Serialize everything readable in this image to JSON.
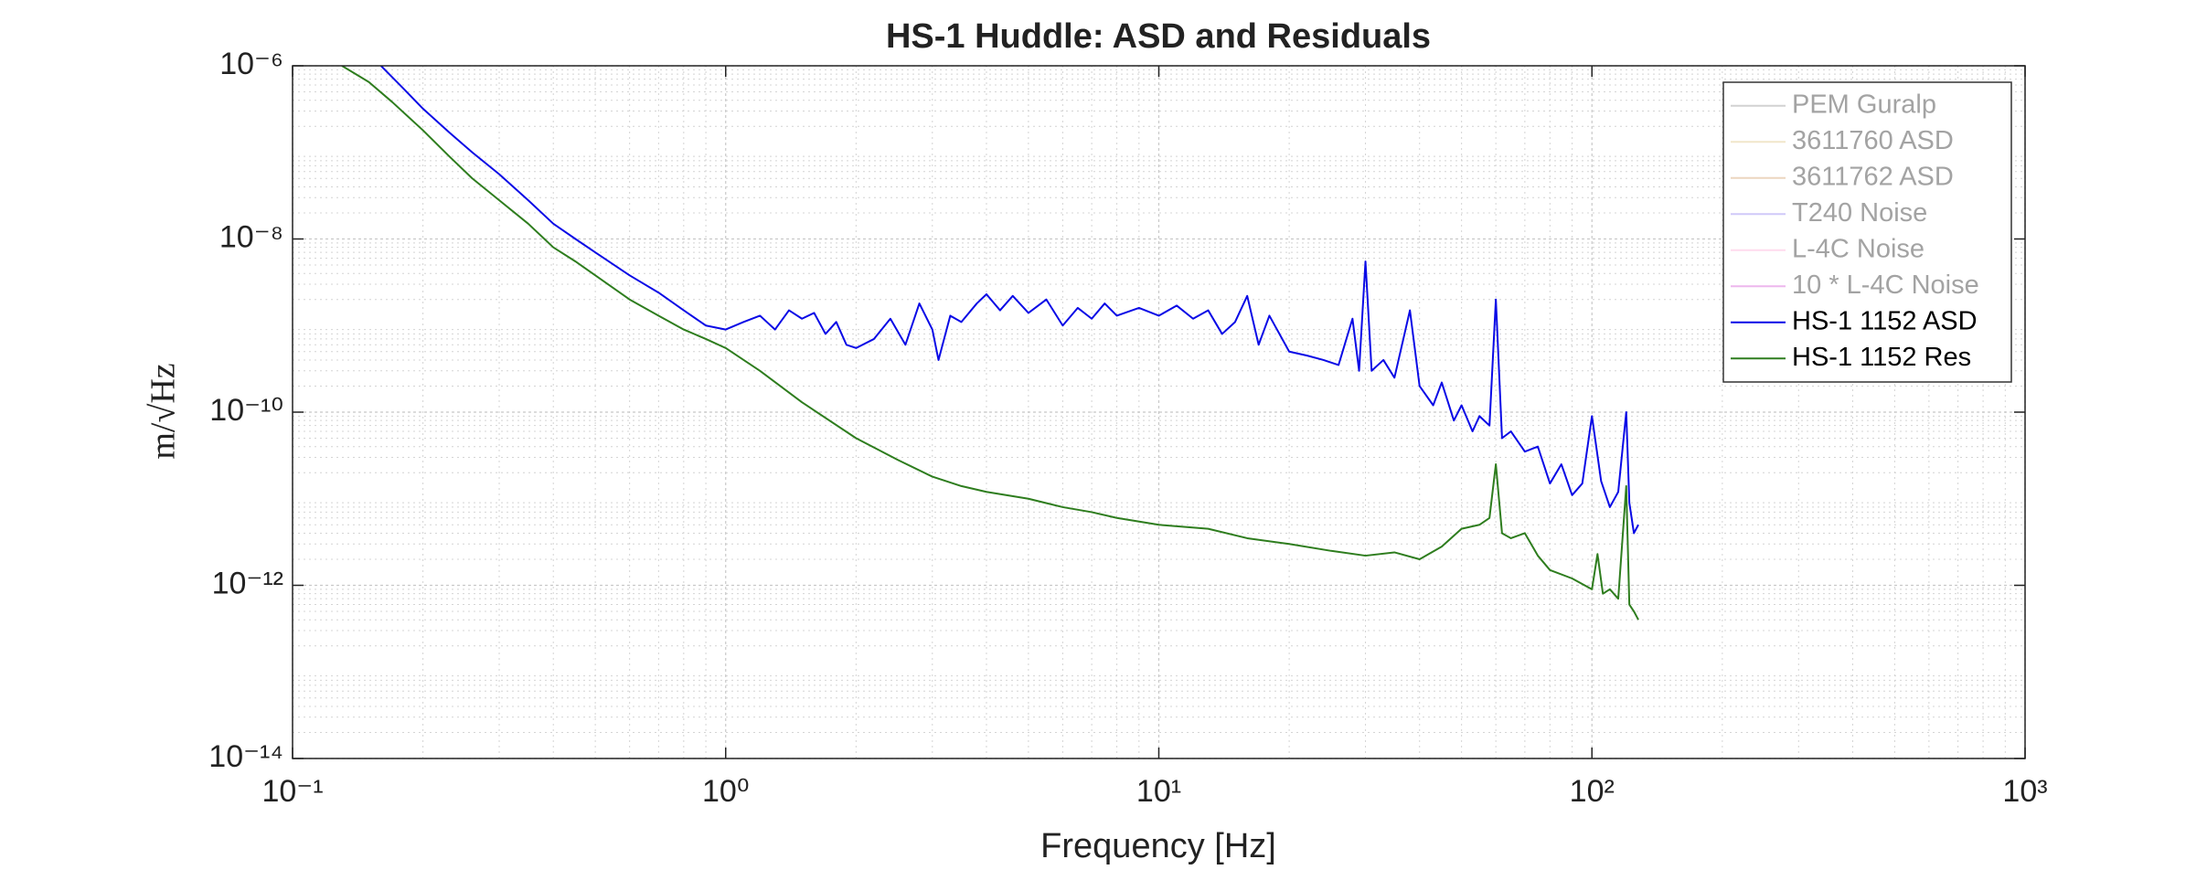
{
  "chart_data": {
    "type": "line",
    "title": "HS-1 Huddle: ASD and Residuals",
    "x_label": "Frequency [Hz]",
    "y_label": "m/√Hz",
    "xscale": "log",
    "yscale": "log",
    "grid": true,
    "minor_grid": true,
    "legend": "top-right",
    "xlim": [
      0.1,
      1000
    ],
    "ylim": [
      1e-14,
      1e-06
    ],
    "xticks": [
      {
        "value": 0.1,
        "label": "10⁻¹"
      },
      {
        "value": 1,
        "label": "10⁰"
      },
      {
        "value": 10,
        "label": "10¹"
      },
      {
        "value": 100,
        "label": "10²"
      },
      {
        "value": 1000,
        "label": "10³"
      }
    ],
    "yticks": [
      {
        "value": 1e-14,
        "label": "10⁻¹⁴"
      },
      {
        "value": 1e-12,
        "label": "10⁻¹²"
      },
      {
        "value": 1e-10,
        "label": "10⁻¹⁰"
      },
      {
        "value": 1e-08,
        "label": "10⁻⁸"
      },
      {
        "value": 1e-06,
        "label": "10⁻⁶"
      }
    ],
    "series": [
      {
        "name": "PEM Guralp",
        "color": "#7f7f7f",
        "visible": false,
        "x": [],
        "values": []
      },
      {
        "name": "3611760 ASD",
        "color": "#d9b86a",
        "visible": false,
        "x": [],
        "values": []
      },
      {
        "name": "3611762 ASD",
        "color": "#c98a4b",
        "visible": false,
        "x": [],
        "values": []
      },
      {
        "name": "T240 Noise",
        "color": "#7b68ee",
        "visible": false,
        "x": [],
        "values": []
      },
      {
        "name": "L-4C Noise",
        "color": "#ff99cc",
        "visible": false,
        "x": [],
        "values": []
      },
      {
        "name": "10 * L-4C Noise",
        "color": "#cc33cc",
        "visible": false,
        "x": [],
        "values": []
      },
      {
        "name": "HS-1 1152 ASD",
        "color": "#0a0ae6",
        "visible": true,
        "x": [
          0.16,
          0.18,
          0.2,
          0.23,
          0.26,
          0.3,
          0.35,
          0.4,
          0.45,
          0.5,
          0.6,
          0.7,
          0.8,
          0.9,
          1.0,
          1.1,
          1.2,
          1.3,
          1.4,
          1.5,
          1.6,
          1.7,
          1.8,
          1.9,
          2.0,
          2.2,
          2.4,
          2.6,
          2.8,
          3.0,
          3.1,
          3.3,
          3.5,
          3.8,
          4.0,
          4.3,
          4.6,
          5.0,
          5.5,
          6.0,
          6.5,
          7.0,
          7.5,
          8.0,
          9.0,
          10,
          11,
          12,
          13,
          14,
          15,
          16,
          17,
          18,
          20,
          22,
          24,
          26,
          28,
          29,
          30,
          31,
          33,
          35,
          38,
          40,
          43,
          45,
          48,
          50,
          53,
          55,
          58,
          60,
          62,
          65,
          70,
          75,
          80,
          85,
          90,
          95,
          100,
          105,
          110,
          115,
          120,
          122,
          125,
          128
        ],
        "values": [
          1e-06,
          5.5e-07,
          3.2e-07,
          1.7e-07,
          1e-07,
          5.6e-08,
          2.8e-08,
          1.5e-08,
          1e-08,
          7e-09,
          3.8e-09,
          2.4e-09,
          1.5e-09,
          1e-09,
          9e-10,
          1.1e-09,
          1.3e-09,
          9e-10,
          1.5e-09,
          1.2e-09,
          1.4e-09,
          8e-10,
          1.1e-09,
          6e-10,
          5.5e-10,
          7e-10,
          1.2e-09,
          6e-10,
          1.8e-09,
          9e-10,
          4e-10,
          1.3e-09,
          1.1e-09,
          1.8e-09,
          2.3e-09,
          1.5e-09,
          2.2e-09,
          1.4e-09,
          2e-09,
          1e-09,
          1.6e-09,
          1.2e-09,
          1.8e-09,
          1.3e-09,
          1.6e-09,
          1.3e-09,
          1.7e-09,
          1.2e-09,
          1.5e-09,
          8e-10,
          1.1e-09,
          2.2e-09,
          6e-10,
          1.3e-09,
          5e-10,
          4.5e-10,
          4e-10,
          3.5e-10,
          1.2e-09,
          3e-10,
          5.5e-09,
          3e-10,
          4e-10,
          2.5e-10,
          1.5e-09,
          2e-10,
          1.2e-10,
          2.2e-10,
          8e-11,
          1.2e-10,
          6e-11,
          9e-11,
          7e-11,
          2e-09,
          5e-11,
          6e-11,
          3.5e-11,
          4e-11,
          1.5e-11,
          2.5e-11,
          1.1e-11,
          1.5e-11,
          9e-11,
          1.6e-11,
          8e-12,
          1.2e-11,
          1e-10,
          9e-12,
          4e-12,
          5e-12
        ]
      },
      {
        "name": "HS-1 1152 Res",
        "color": "#2e7d1e",
        "visible": true,
        "x": [
          0.13,
          0.15,
          0.17,
          0.2,
          0.23,
          0.26,
          0.3,
          0.35,
          0.4,
          0.45,
          0.5,
          0.6,
          0.7,
          0.8,
          0.9,
          1.0,
          1.2,
          1.5,
          2.0,
          2.5,
          3.0,
          3.5,
          4.0,
          5.0,
          6.0,
          7.0,
          8.0,
          10,
          13,
          16,
          20,
          25,
          30,
          35,
          40,
          45,
          50,
          55,
          58,
          60,
          62,
          65,
          70,
          75,
          80,
          90,
          100,
          103,
          106,
          110,
          115,
          120,
          122,
          125,
          128
        ],
        "values": [
          1e-06,
          6.5e-07,
          3.8e-07,
          1.8e-07,
          9e-08,
          5e-08,
          2.8e-08,
          1.5e-08,
          8e-09,
          5.5e-09,
          3.8e-09,
          2e-09,
          1.3e-09,
          9e-10,
          7e-10,
          5.5e-10,
          3e-10,
          1.3e-10,
          5e-11,
          2.8e-11,
          1.8e-11,
          1.4e-11,
          1.2e-11,
          1e-11,
          8e-12,
          7e-12,
          6e-12,
          5e-12,
          4.5e-12,
          3.5e-12,
          3e-12,
          2.5e-12,
          2.2e-12,
          2.4e-12,
          2e-12,
          2.8e-12,
          4.5e-12,
          5e-12,
          6e-12,
          2.5e-11,
          4e-12,
          3.5e-12,
          4e-12,
          2.2e-12,
          1.5e-12,
          1.2e-12,
          9e-13,
          2.3e-12,
          8e-13,
          9e-13,
          7e-13,
          1.4e-11,
          6e-13,
          5e-13,
          4e-13
        ]
      }
    ]
  }
}
